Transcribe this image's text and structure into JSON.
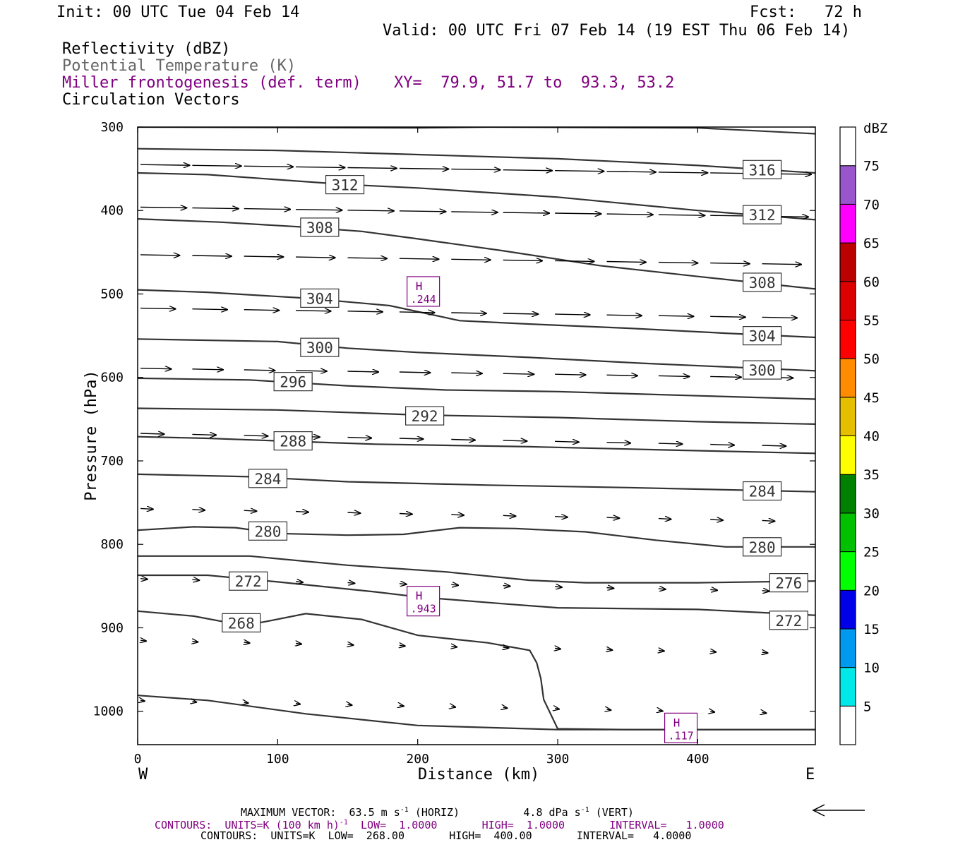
{
  "header": {
    "init": "Init: 00 UTC Tue 04 Feb 14",
    "fcst": "Fcst:   72 h",
    "valid": "Valid: 00 UTC Fri 07 Feb 14 (19 EST Thu 06 Feb 14)"
  },
  "fields": {
    "reflectivity": "Reflectivity (dBZ)",
    "theta": "Potential Temperature (K)",
    "frontogenesis": "Miller frontogenesis (def. term)",
    "xy": "XY=  79.9, 51.7 to  93.3, 53.2",
    "vectors": "Circulation Vectors"
  },
  "footer": {
    "max_vector_prefix": "MAXIMUM VECTOR:  63.5 m s",
    "max_vector_sup1": "-1",
    "max_vector_mid": " (HORIZ)          4.8 dPa s",
    "max_vector_sup2": "-1",
    "max_vector_suffix": " (VERT)",
    "contours_purple_prefix": "CONTOURS:  UNITS=K (100 km h)",
    "contours_purple_sup": "-1",
    "contours_purple_suffix": "  LOW=  1.0000       HIGH=  1.0000       INTERVAL=   1.0000",
    "contours_black": "CONTOURS:  UNITS=K  LOW=  268.00       HIGH=  400.00       INTERVAL=   4.0000"
  },
  "chart_data": {
    "type": "cross-section",
    "xlabel": "Distance (km)",
    "ylabel": "Pressure (hPa)",
    "x_left_label": "W",
    "x_right_label": "E",
    "xlim": [
      0,
      484
    ],
    "ylim": [
      1040,
      300
    ],
    "x_ticks": [
      "0",
      "100",
      "200",
      "300",
      "400"
    ],
    "y_ticks": [
      "300",
      "400",
      "500",
      "600",
      "700",
      "800",
      "900",
      "1000"
    ],
    "colorbar": {
      "unit": "dBZ",
      "labels": [
        "5",
        "10",
        "15",
        "20",
        "25",
        "30",
        "35",
        "40",
        "45",
        "50",
        "55",
        "60",
        "65",
        "70",
        "75"
      ],
      "colors": [
        "#ffffff",
        "#00e8e8",
        "#0099f0",
        "#0000e8",
        "#00ff00",
        "#00c000",
        "#008000",
        "#ffff00",
        "#e6be00",
        "#ff8c00",
        "#ff0000",
        "#dd0000",
        "#bb0000",
        "#ff00ff",
        "#9955cc",
        "#ffffff"
      ]
    },
    "theta_labels": [
      {
        "text": "316",
        "x": 446,
        "p": 351
      },
      {
        "text": "312",
        "x": 148,
        "p": 369
      },
      {
        "text": "312",
        "x": 446,
        "p": 405
      },
      {
        "text": "308",
        "x": 130,
        "p": 420
      },
      {
        "text": "308",
        "x": 446,
        "p": 486
      },
      {
        "text": "304",
        "x": 130,
        "p": 505
      },
      {
        "text": "304",
        "x": 446,
        "p": 550
      },
      {
        "text": "300",
        "x": 130,
        "p": 564
      },
      {
        "text": "300",
        "x": 446,
        "p": 591
      },
      {
        "text": "296",
        "x": 111,
        "p": 605
      },
      {
        "text": "292",
        "x": 205,
        "p": 646
      },
      {
        "text": "288",
        "x": 111,
        "p": 676
      },
      {
        "text": "284",
        "x": 93,
        "p": 721
      },
      {
        "text": "284",
        "x": 446,
        "p": 736
      },
      {
        "text": "280",
        "x": 93,
        "p": 784
      },
      {
        "text": "280",
        "x": 446,
        "p": 803
      },
      {
        "text": "272",
        "x": 79,
        "p": 844
      },
      {
        "text": "276",
        "x": 465,
        "p": 846
      },
      {
        "text": "268",
        "x": 74,
        "p": 894
      },
      {
        "text": "272",
        "x": 465,
        "p": 891
      }
    ],
    "frontogenesis_highs": [
      {
        "label": "H",
        "value": ".244",
        "x": 204,
        "p": 497
      },
      {
        "label": "H",
        "value": ".943",
        "x": 204,
        "p": 868
      },
      {
        "label": "H",
        "value": ".117",
        "x": 388,
        "p": 1020
      }
    ]
  }
}
